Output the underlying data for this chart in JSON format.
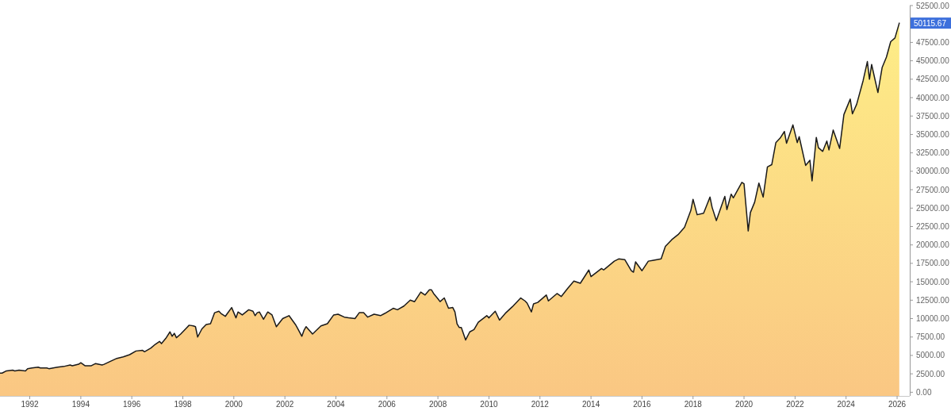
{
  "chart_data": {
    "type": "area",
    "color": "#fdd886",
    "x": [
      "1990-11",
      "1990-12",
      "1991-02",
      "1991-05",
      "1991-06",
      "1991-08",
      "1991-11",
      "1991-12",
      "1992-02",
      "1992-05",
      "1992-06",
      "1992-09",
      "1992-10",
      "1992-12",
      "1993-02",
      "1993-05",
      "1993-08",
      "1993-09",
      "1993-12",
      "1994-01",
      "1994-03",
      "1994-06",
      "1994-08",
      "1994-11",
      "1994-12",
      "1995-03",
      "1995-06",
      "1995-09",
      "1995-12",
      "1996-03",
      "1996-06",
      "1996-07",
      "1996-10",
      "1996-12",
      "1997-02",
      "1997-03",
      "1997-05",
      "1997-07",
      "1997-08",
      "1997-09",
      "1997-10",
      "1997-12",
      "1998-03",
      "1998-04",
      "1998-06",
      "1998-07",
      "1998-08",
      "1998-10",
      "1998-12",
      "1999-02",
      "1999-04",
      "1999-06",
      "1999-07",
      "1999-09",
      "1999-10",
      "1999-12",
      "2000-02",
      "2000-03",
      "2000-05",
      "2000-08",
      "2000-10",
      "2000-11",
      "2000-12",
      "2001-01",
      "2001-03",
      "2001-05",
      "2001-07",
      "2001-09",
      "2001-12",
      "2002-03",
      "2002-06",
      "2002-07",
      "2002-09",
      "2002-10",
      "2002-11",
      "2003-02",
      "2003-06",
      "2003-09",
      "2003-12",
      "2004-02",
      "2004-05",
      "2004-07",
      "2004-10",
      "2004-12",
      "2005-02",
      "2005-04",
      "2005-07",
      "2005-10",
      "2005-12",
      "2006-04",
      "2006-06",
      "2006-09",
      "2006-12",
      "2007-02",
      "2007-05",
      "2007-07",
      "2007-09",
      "2007-10",
      "2007-11",
      "2008-01",
      "2008-02",
      "2008-04",
      "2008-06",
      "2008-08",
      "2008-09",
      "2008-10",
      "2008-11",
      "2008-12",
      "2009-02",
      "2009-04",
      "2009-06",
      "2009-08",
      "2009-12",
      "2010-01",
      "2010-04",
      "2010-06",
      "2010-09",
      "2010-12",
      "2011-04",
      "2011-06",
      "2011-07",
      "2011-09",
      "2011-10",
      "2011-12",
      "2012-04",
      "2012-05",
      "2012-09",
      "2012-11",
      "2013-02",
      "2013-05",
      "2013-08",
      "2013-12",
      "2014-01",
      "2014-06",
      "2014-07",
      "2014-12",
      "2015-02",
      "2015-05",
      "2015-08",
      "2015-09",
      "2015-10",
      "2016-01",
      "2016-04",
      "2016-06",
      "2016-10",
      "2016-12",
      "2017-03",
      "2017-06",
      "2017-09",
      "2017-12",
      "2018-01",
      "2018-03",
      "2018-06",
      "2018-09",
      "2018-10",
      "2018-12",
      "2019-04",
      "2019-05",
      "2019-07",
      "2019-08",
      "2019-12",
      "2020-01",
      "2020-03",
      "2020-04",
      "2020-06",
      "2020-08",
      "2020-10",
      "2020-12",
      "2021-02",
      "2021-04",
      "2021-06",
      "2021-08",
      "2021-09",
      "2021-12",
      "2022-02",
      "2022-03",
      "2022-06",
      "2022-08",
      "2022-09",
      "2022-11",
      "2022-12",
      "2023-02",
      "2023-04",
      "2023-05",
      "2023-07",
      "2023-10",
      "2023-12",
      "2024-03",
      "2024-04",
      "2024-06",
      "2024-09",
      "2024-11",
      "2024-12",
      "2025-01",
      "2025-03",
      "2025-04",
      "2025-06",
      "2025-08",
      "2025-10",
      "2025-12",
      "2026-02"
    ],
    "values": [
      2600,
      2600,
      2900,
      3000,
      2900,
      3000,
      2900,
      3200,
      3300,
      3400,
      3300,
      3300,
      3200,
      3300,
      3400,
      3500,
      3700,
      3600,
      3800,
      4000,
      3600,
      3600,
      3900,
      3700,
      3800,
      4200,
      4600,
      4800,
      5100,
      5600,
      5700,
      5500,
      6000,
      6500,
      6900,
      6600,
      7300,
      8200,
      7600,
      8000,
      7400,
      7900,
      8800,
      9100,
      9000,
      8900,
      7500,
      8600,
      9200,
      9300,
      10800,
      11000,
      10700,
      10300,
      10700,
      11500,
      10100,
      10900,
      10500,
      11200,
      11000,
      10400,
      10800,
      10900,
      9900,
      10900,
      10500,
      8900,
      10000,
      10400,
      9200,
      8700,
      7600,
      8400,
      8900,
      7900,
      9000,
      9300,
      10500,
      10600,
      10200,
      10100,
      10000,
      10800,
      10800,
      10200,
      10600,
      10400,
      10700,
      11400,
      11200,
      11700,
      12500,
      12300,
      13600,
      13200,
      13900,
      13900,
      13400,
      12700,
      12300,
      12800,
      11400,
      11500,
      10900,
      9300,
      8800,
      8800,
      7100,
      8200,
      8500,
      9500,
      10400,
      10100,
      11000,
      9800,
      10800,
      11600,
      12800,
      12400,
      12100,
      10900,
      12000,
      12200,
      13200,
      12400,
      13400,
      13000,
      14100,
      15100,
      14800,
      16600,
      15700,
      16800,
      16600,
      17800,
      18100,
      18000,
      16500,
      16300,
      17700,
      16500,
      17800,
      17900,
      18100,
      19800,
      20700,
      21400,
      22400,
      24700,
      26200,
      24100,
      24300,
      26500,
      25100,
      23300,
      26600,
      24800,
      26900,
      26400,
      28500,
      28300,
      21900,
      24400,
      25800,
      28400,
      26500,
      30600,
      30900,
      33900,
      34500,
      35400,
      33800,
      36300,
      33900,
      34700,
      30800,
      31500,
      28700,
      34600,
      33200,
      32700,
      34100,
      32900,
      35600,
      33100,
      37700,
      39800,
      37800,
      39100,
      42300,
      44900,
      42500,
      44500,
      42000,
      40700,
      44100,
      45500,
      47600,
      48100,
      50115.67
    ],
    "xlim": [
      "1990-11",
      "2026-07"
    ],
    "ylim": [
      -500,
      52500
    ],
    "xticks": [
      "1992",
      "1994",
      "1996",
      "1998",
      "2000",
      "2002",
      "2004",
      "2006",
      "2008",
      "2010",
      "2012",
      "2014",
      "2016",
      "2018",
      "2020",
      "2022",
      "2024",
      "2026"
    ],
    "yticks": [
      {
        "value": 0,
        "label": "0.00"
      },
      {
        "value": 2500,
        "label": "2500.00"
      },
      {
        "value": 5000,
        "label": "5000.00"
      },
      {
        "value": 7500,
        "label": "7500.00"
      },
      {
        "value": 10000,
        "label": "10000.00"
      },
      {
        "value": 12500,
        "label": "12500.00"
      },
      {
        "value": 15000,
        "label": "15000.00"
      },
      {
        "value": 17500,
        "label": "17500.00"
      },
      {
        "value": 20000,
        "label": "20000.00"
      },
      {
        "value": 22500,
        "label": "22500.00"
      },
      {
        "value": 25000,
        "label": "25000.00"
      },
      {
        "value": 27500,
        "label": "27500.00"
      },
      {
        "value": 30000,
        "label": "30000.00"
      },
      {
        "value": 32500,
        "label": "32500.00"
      },
      {
        "value": 35000,
        "label": "35000.00"
      },
      {
        "value": 37500,
        "label": "37500.00"
      },
      {
        "value": 40000,
        "label": "40000.00"
      },
      {
        "value": 42500,
        "label": "42500.00"
      },
      {
        "value": 45000,
        "label": "45000.00"
      },
      {
        "value": 47500,
        "label": "47500.00"
      },
      {
        "value": 52500,
        "label": "52500.00"
      }
    ],
    "annotations": [
      "50115.67"
    ]
  }
}
